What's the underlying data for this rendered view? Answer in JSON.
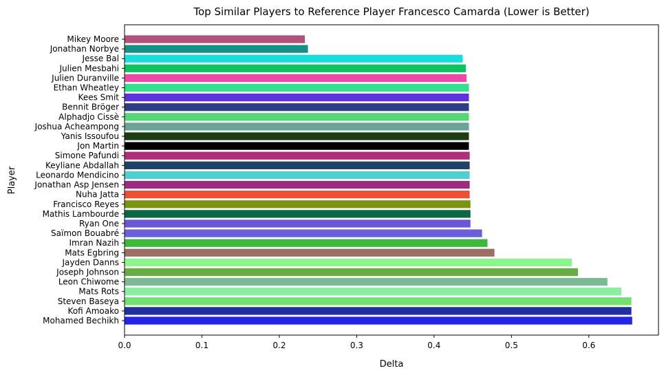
{
  "chart_data": {
    "type": "bar",
    "orientation": "horizontal",
    "title": "Top Similar Players to Reference Player Francesco Camarda (Lower is Better)",
    "xlabel": "Delta",
    "ylabel": "Player",
    "xlim": [
      0,
      0.69
    ],
    "x_ticks": [
      0.0,
      0.1,
      0.2,
      0.3,
      0.4,
      0.5,
      0.6
    ],
    "x_tick_labels": [
      "0.0",
      "0.1",
      "0.2",
      "0.3",
      "0.4",
      "0.5",
      "0.6"
    ],
    "grid": false,
    "bars": [
      {
        "label": "Mikey Moore",
        "value": 0.233,
        "color": "#b05279"
      },
      {
        "label": "Jonathan Norbye",
        "value": 0.237,
        "color": "#168f86"
      },
      {
        "label": "Jesse Bal",
        "value": 0.437,
        "color": "#18dede"
      },
      {
        "label": "Julien Mesbahi",
        "value": 0.441,
        "color": "#0ac45e"
      },
      {
        "label": "Julien Duranville",
        "value": 0.442,
        "color": "#f048a5"
      },
      {
        "label": "Ethan Wheatley",
        "value": 0.445,
        "color": "#34e08f"
      },
      {
        "label": "Kees Smit",
        "value": 0.445,
        "color": "#5b33d9"
      },
      {
        "label": "Bennit Bröger",
        "value": 0.445,
        "color": "#2f3e82"
      },
      {
        "label": "Alphadjo Cissè",
        "value": 0.445,
        "color": "#56d676"
      },
      {
        "label": "Joshua Acheampong",
        "value": 0.445,
        "color": "#6ba394"
      },
      {
        "label": "Yanis Issoufou",
        "value": 0.445,
        "color": "#1e3d14"
      },
      {
        "label": "Jon Martin",
        "value": 0.445,
        "color": "#000000"
      },
      {
        "label": "Simone Pafundi",
        "value": 0.446,
        "color": "#b02c79"
      },
      {
        "label": "Keyliane Abdallah",
        "value": 0.446,
        "color": "#1f4266"
      },
      {
        "label": "Leonardo Mendicino",
        "value": 0.446,
        "color": "#4fcfcf"
      },
      {
        "label": "Jonathan Asp Jensen",
        "value": 0.446,
        "color": "#9c2c80"
      },
      {
        "label": "Nuha Jatta",
        "value": 0.446,
        "color": "#ee5036"
      },
      {
        "label": "Francisco Reyes",
        "value": 0.447,
        "color": "#7d9412"
      },
      {
        "label": "Mathis Lambourde",
        "value": 0.447,
        "color": "#0d6644"
      },
      {
        "label": "Ryan One",
        "value": 0.447,
        "color": "#6a56d6"
      },
      {
        "label": "Saïmon Bouabré",
        "value": 0.462,
        "color": "#6b5edb"
      },
      {
        "label": "Imran Nazih",
        "value": 0.469,
        "color": "#3cb83c"
      },
      {
        "label": "Mats Egbring",
        "value": 0.478,
        "color": "#9c7066"
      },
      {
        "label": "Jayden Danns",
        "value": 0.578,
        "color": "#8ef58e"
      },
      {
        "label": "Joseph Johnson",
        "value": 0.586,
        "color": "#6aad45"
      },
      {
        "label": "Leon Chiwome",
        "value": 0.624,
        "color": "#7dba94"
      },
      {
        "label": "Mats Rots",
        "value": 0.642,
        "color": "#88f0a0"
      },
      {
        "label": "Steven Baseya",
        "value": 0.655,
        "color": "#72e072"
      },
      {
        "label": "Kofi Amoako",
        "value": 0.655,
        "color": "#1f2f9e"
      },
      {
        "label": "Mohamed Bechikh",
        "value": 0.656,
        "color": "#2424e6"
      }
    ]
  }
}
